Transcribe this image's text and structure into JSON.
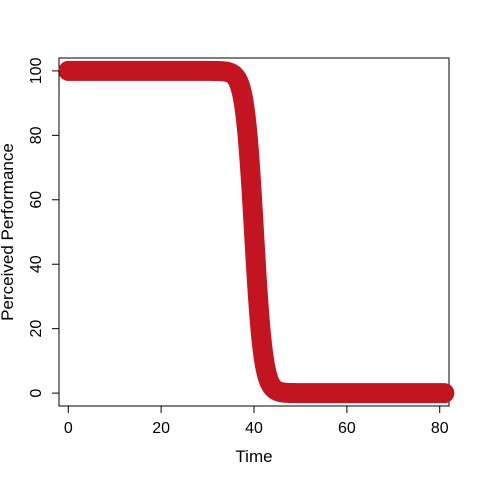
{
  "chart_data": {
    "type": "line",
    "title": "",
    "xlabel": "Time",
    "ylabel": "Perceived Performance",
    "xlim": [
      -2,
      82
    ],
    "ylim": [
      -4,
      104
    ],
    "xticks": [
      0,
      20,
      40,
      60,
      80
    ],
    "yticks": [
      0,
      20,
      40,
      60,
      80,
      100
    ],
    "grid": false,
    "legend": "none",
    "series": [
      {
        "color": "#c21421",
        "curve": "logistic",
        "x_start": 0,
        "x_end": 81,
        "upper": 100,
        "lower": 0,
        "midpoint": 40,
        "steepness": 1.0
      }
    ]
  }
}
